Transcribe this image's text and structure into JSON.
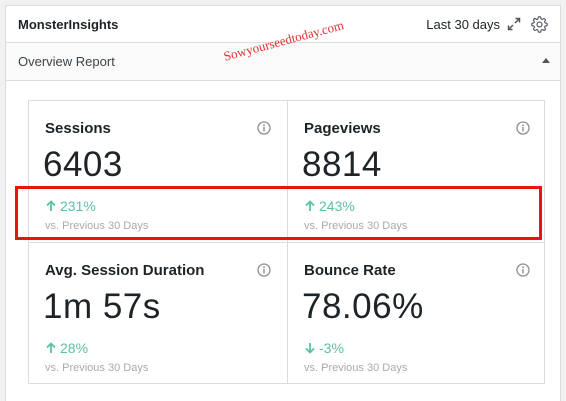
{
  "widget": {
    "title": "MonsterInsights",
    "period": "Last 30 days",
    "subtitle": "Overview Report",
    "watermark": "Sowyourseedtoday.com"
  },
  "metrics": [
    {
      "label": "Sessions",
      "value": "6403",
      "change": "231%",
      "direction": "up",
      "compare": "vs. Previous 30 Days"
    },
    {
      "label": "Pageviews",
      "value": "8814",
      "change": "243%",
      "direction": "up",
      "compare": "vs. Previous 30 Days"
    },
    {
      "label": "Avg. Session Duration",
      "value": "1m 57s",
      "change": "28%",
      "direction": "up",
      "compare": "vs. Previous 30 Days"
    },
    {
      "label": "Bounce Rate",
      "value": "78.06%",
      "change": "-3%",
      "direction": "down",
      "compare": "vs. Previous 30 Days"
    }
  ],
  "colors": {
    "positive": "#5cc0a5",
    "highlight": "#e81414",
    "watermark": "#e03030"
  },
  "icons": [
    "expand-icon",
    "gear-icon",
    "collapse-icon",
    "info-icon",
    "arrow-up-icon",
    "arrow-down-icon"
  ]
}
